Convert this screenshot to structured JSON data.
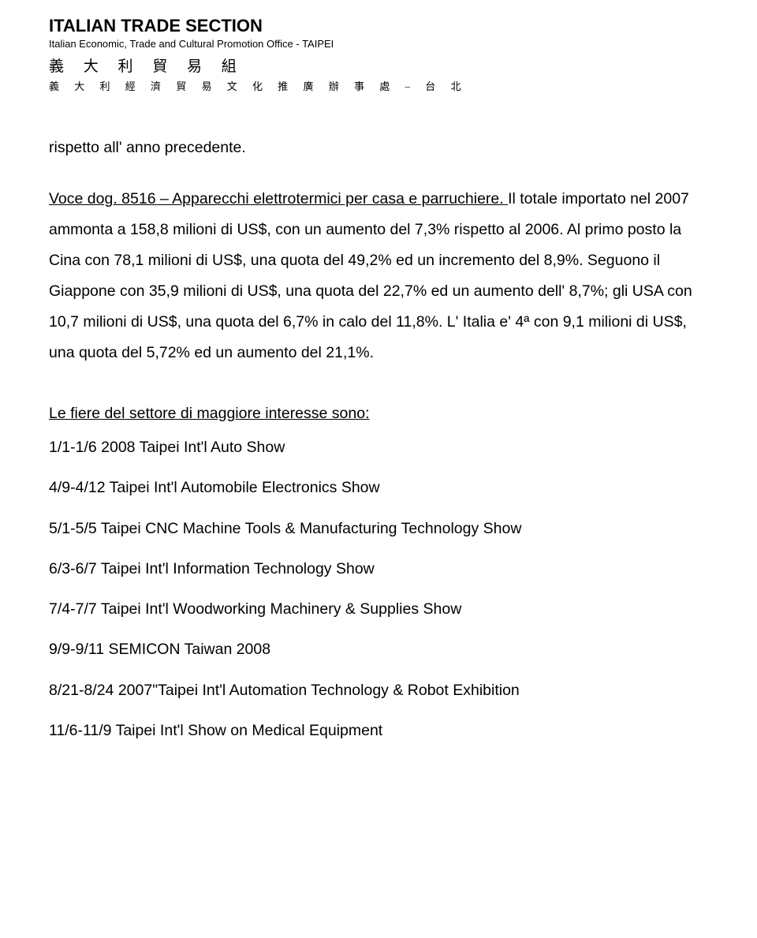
{
  "letterhead": {
    "title": "ITALIAN TRADE SECTION",
    "subtitle": "Italian Economic, Trade and Cultural Promotion Office - TAIPEI",
    "cjk_line1": "義 大 利 貿 易 組",
    "cjk_line2": "義 大 利 經 濟 貿 易 文 化 推 廣 辦 事 處 – 台 北"
  },
  "body": {
    "p1": "rispetto all' anno precedente.",
    "p2_underline": "Voce dog. 8516 – Apparecchi elettrotermici per casa e parruchiere. ",
    "p2_rest": " Il totale importato nel 2007 ammonta a 158,8 milioni di US$, con un aumento del 7,3% rispetto al 2006. Al primo posto la Cina con 78,1 milioni di US$, una quota del 49,2% ed un incremento del 8,9%. Seguono il Giappone con 35,9 milioni di US$, una quota del 22,7% ed un aumento dell' 8,7%; gli USA con 10,7 milioni di US$, una quota del 6,7% in calo del 11,8%. L' Italia e' 4ª con 9,1 milioni di US$, una quota del 5,72% ed un aumento del 21,1%."
  },
  "fairs": {
    "heading": "Le fiere del settore di maggiore interesse sono:",
    "items": [
      "1/1-1/6 2008 Taipei Int'l Auto Show",
      "4/9-4/12 Taipei Int'l Automobile Electronics Show",
      "5/1-5/5 Taipei CNC Machine Tools & Manufacturing Technology Show",
      "6/3-6/7 Taipei Int'l Information Technology Show",
      "7/4-7/7 Taipei Int'l Woodworking Machinery & Supplies Show",
      "9/9-9/11 SEMICON Taiwan 2008",
      "8/21-8/24 2007\"Taipei Int'l Automation Technology & Robot Exhibition",
      "11/6-11/9 Taipei Int'l Show on Medical Equipment"
    ]
  }
}
